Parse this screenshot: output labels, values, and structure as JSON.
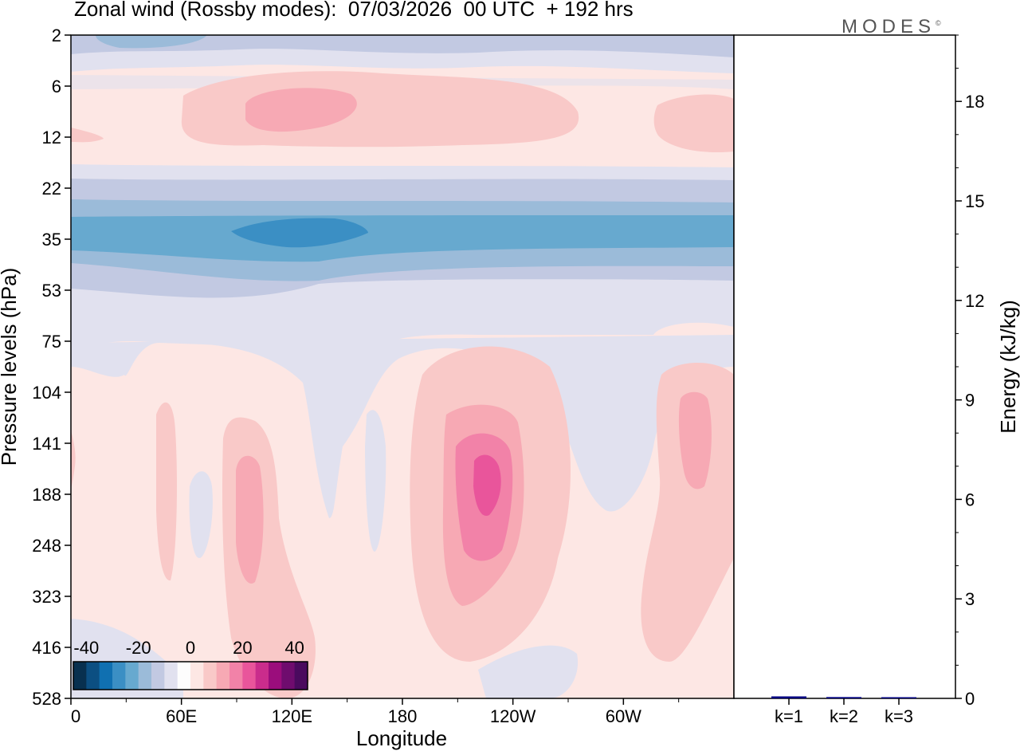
{
  "title": "Zonal wind (Rossby modes):  07/03/2026  00 UTC  + 192 hrs",
  "logo": "MODES",
  "logo_mark": "©",
  "chart_data": [
    {
      "type": "heatmap",
      "title": "Zonal wind (Rossby modes)",
      "xlabel": "Longitude",
      "ylabel": "Pressure levels (hPa)",
      "x_ticks": [
        "0",
        "60E",
        "120E",
        "180",
        "120W",
        "60W"
      ],
      "y_ticks": [
        "2",
        "6",
        "12",
        "22",
        "35",
        "53",
        "75",
        "104",
        "141",
        "188",
        "248",
        "323",
        "416",
        "528"
      ],
      "colorbar": {
        "ticks": [
          "-40",
          "-20",
          "0",
          "20",
          "40"
        ],
        "range": [
          -45,
          45
        ],
        "colors": [
          "#08304f",
          "#0c4f82",
          "#1070b1",
          "#3b8fc4",
          "#67a9cf",
          "#9bbbd9",
          "#c2c9e2",
          "#e1e1ef",
          "#fdfdfd",
          "#fde7e4",
          "#f9c9c8",
          "#f7a9b4",
          "#f282a8",
          "#e9559b",
          "#ca2c8c",
          "#9b0d7c",
          "#6f0c6e",
          "#4a0a5e"
        ]
      },
      "features": [
        {
          "label": "upper easterly band",
          "lon": [
            0,
            360
          ],
          "level": 35,
          "min_speed": -30
        },
        {
          "label": "easterly core",
          "lon": [
            90,
            170
          ],
          "level": 35,
          "speed": -35
        },
        {
          "label": "westerly core",
          "lon": [
            210,
            235
          ],
          "level": 188,
          "speed": 25
        },
        {
          "label": "upper westerly maximum",
          "lon": [
            95,
            155
          ],
          "level": 8,
          "speed": 12
        }
      ]
    },
    {
      "type": "bar",
      "ylabel": "Energy (kJ/kg)",
      "categories": [
        "k=1",
        "k=2",
        "k=3"
      ],
      "values": [
        0.06,
        0.04,
        0.02
      ],
      "ylim": [
        0,
        20
      ],
      "y_ticks": [
        "0",
        "3",
        "6",
        "9",
        "12",
        "15",
        "18"
      ]
    }
  ]
}
